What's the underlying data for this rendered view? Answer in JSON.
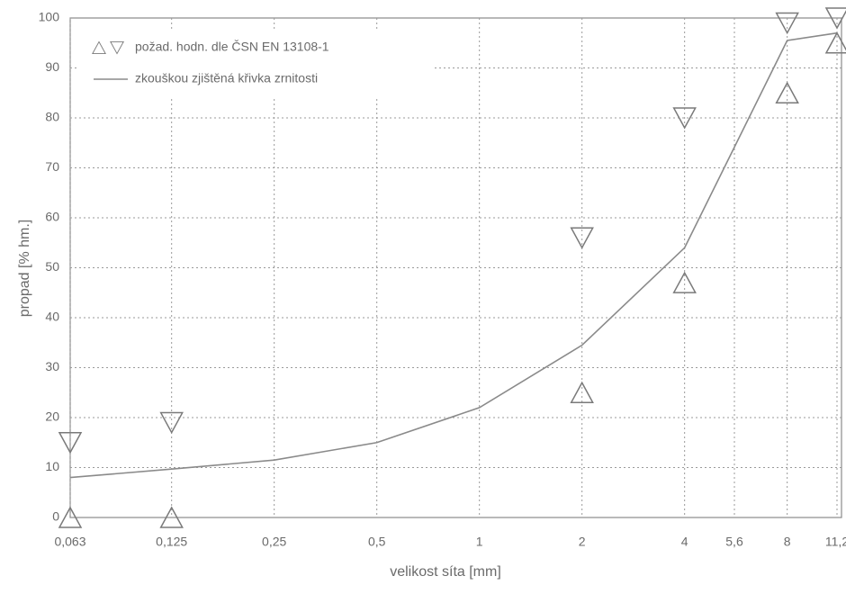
{
  "chart_data": {
    "type": "line",
    "xlabel": "velikost síta [mm]",
    "ylabel": "propad [% hm.]",
    "xscale": "log",
    "x": [
      0.063,
      0.125,
      0.25,
      0.5,
      1,
      2,
      4,
      8,
      11.2
    ],
    "series": [
      {
        "name": "zkouškou zjištěná křivka zrnitosti",
        "color": "#8a8a8a",
        "marker": "line",
        "values": [
          8,
          9.7,
          11.5,
          15,
          22,
          34.5,
          54,
          95.5,
          97
        ]
      },
      {
        "name": "požad. hodn. dle ČSN EN 13108-1",
        "color": "#7a7a7a",
        "marker": "triangle-down",
        "values": [
          15,
          19,
          null,
          null,
          null,
          56,
          80,
          99,
          100
        ]
      },
      {
        "color": "#7a7a7a",
        "marker": "triangle-up",
        "values": [
          0,
          0,
          null,
          null,
          null,
          25,
          47,
          85,
          95
        ]
      }
    ],
    "xlim": [
      0.063,
      11.2
    ],
    "ylim": [
      0,
      100
    ],
    "xticks": [
      {
        "value": 0.063,
        "label": "0,063"
      },
      {
        "value": 0.125,
        "label": "0,125"
      },
      {
        "value": 0.25,
        "label": "0,25"
      },
      {
        "value": 0.5,
        "label": "0,5"
      },
      1,
      2,
      4,
      {
        "value": 5.6,
        "label": "5,6"
      },
      8,
      {
        "value": 11.2,
        "label": "11,2"
      }
    ],
    "yticks": [
      0,
      10,
      20,
      30,
      40,
      50,
      60,
      70,
      80,
      90,
      100
    ],
    "grid": true,
    "legend": "upper left"
  }
}
